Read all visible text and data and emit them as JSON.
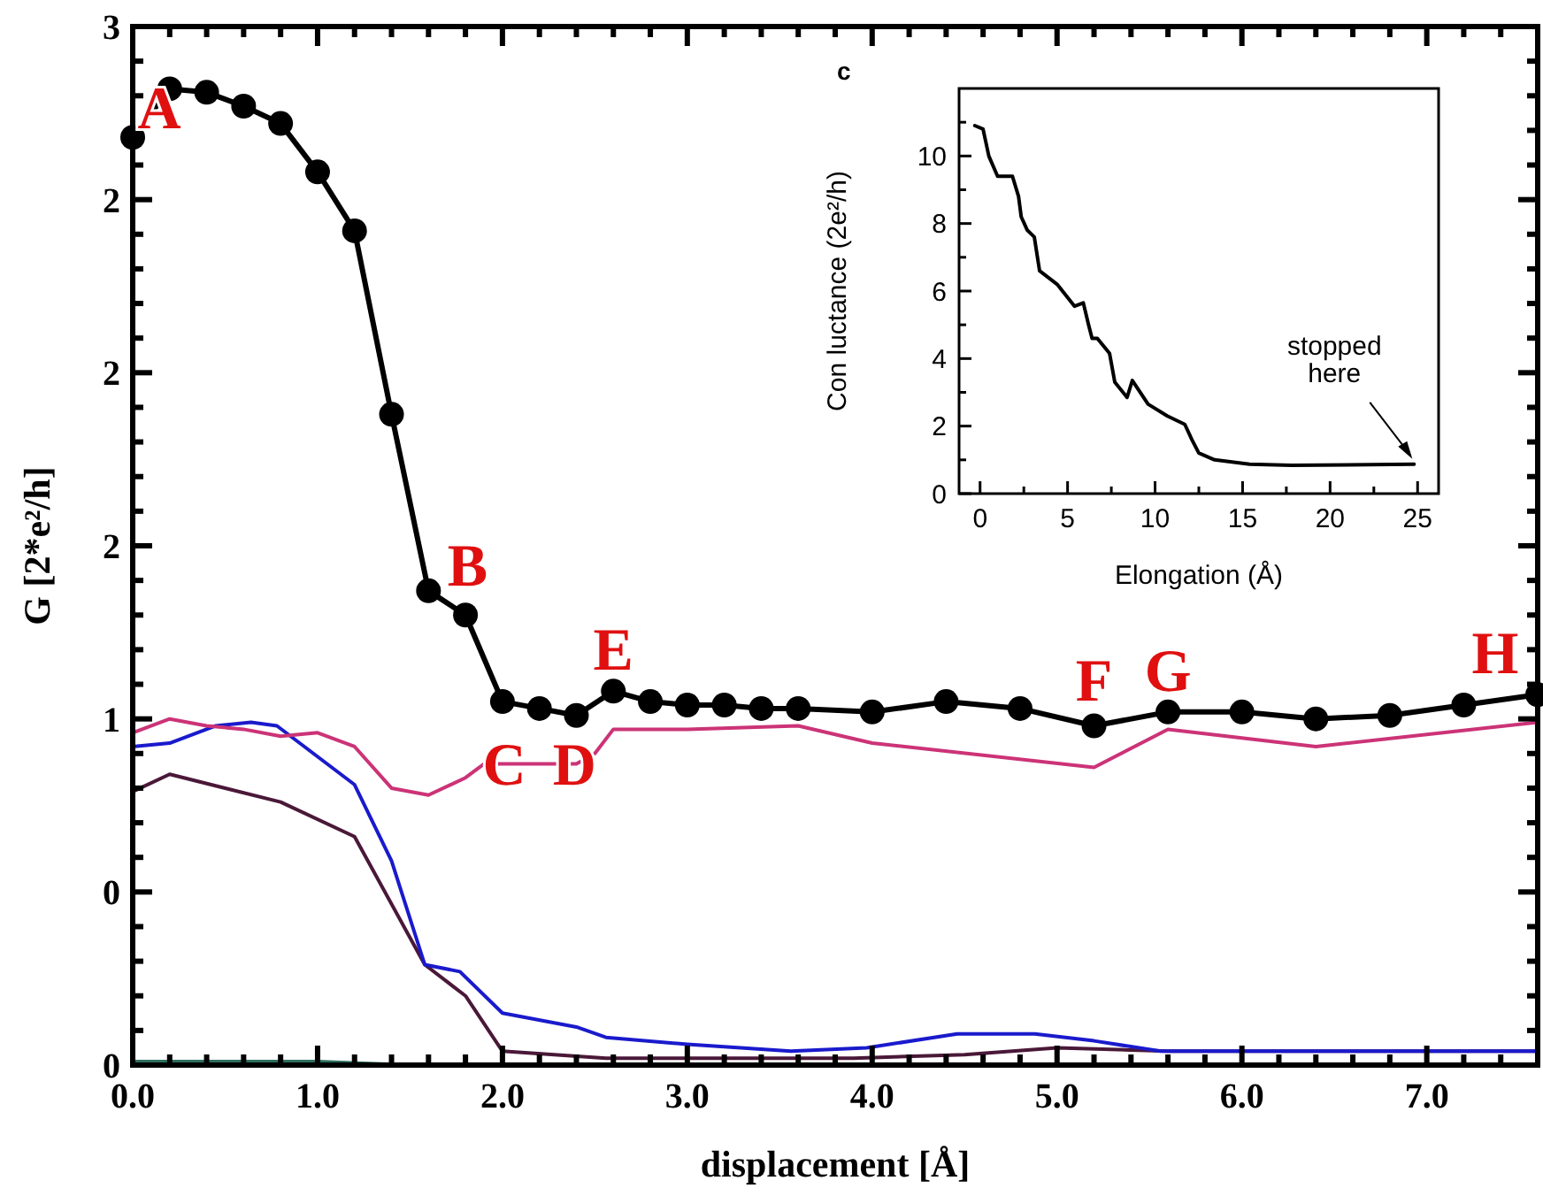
{
  "chart_data": [
    {
      "type": "line",
      "xlabel": "displacement [Å]",
      "ylabel": "G [2*e²/h]",
      "xlim": [
        0,
        7.6
      ],
      "ylim": [
        0,
        3
      ],
      "xticks": [
        {
          "value": 0,
          "label": "0.0"
        },
        {
          "value": 0.2,
          "label": null
        },
        {
          "value": 0.4,
          "label": null
        },
        {
          "value": 0.6,
          "label": null
        },
        {
          "value": 0.8,
          "label": null
        },
        {
          "value": 1,
          "label": "1.0"
        },
        {
          "value": 1.2,
          "label": null
        },
        {
          "value": 1.4,
          "label": null
        },
        {
          "value": 1.6,
          "label": null
        },
        {
          "value": 1.8,
          "label": null
        },
        {
          "value": 2,
          "label": "2.0"
        },
        {
          "value": 2.2,
          "label": null
        },
        {
          "value": 2.4,
          "label": null
        },
        {
          "value": 2.6,
          "label": null
        },
        {
          "value": 2.8,
          "label": null
        },
        {
          "value": 3,
          "label": "3.0"
        },
        {
          "value": 3.2,
          "label": null
        },
        {
          "value": 3.4,
          "label": null
        },
        {
          "value": 3.6,
          "label": null
        },
        {
          "value": 3.8,
          "label": null
        },
        {
          "value": 4,
          "label": "4.0"
        },
        {
          "value": 4.2,
          "label": null
        },
        {
          "value": 4.4,
          "label": null
        },
        {
          "value": 4.6,
          "label": null
        },
        {
          "value": 4.8,
          "label": null
        },
        {
          "value": 5,
          "label": "5.0"
        },
        {
          "value": 5.2,
          "label": null
        },
        {
          "value": 5.4,
          "label": null
        },
        {
          "value": 5.6,
          "label": null
        },
        {
          "value": 5.8,
          "label": null
        },
        {
          "value": 6,
          "label": "6.0"
        },
        {
          "value": 6.2,
          "label": null
        },
        {
          "value": 6.4,
          "label": null
        },
        {
          "value": 6.6,
          "label": null
        },
        {
          "value": 6.8,
          "label": null
        },
        {
          "value": 7,
          "label": "7.0"
        },
        {
          "value": 7.2,
          "label": null
        },
        {
          "value": 7.4,
          "label": null
        }
      ],
      "yticks": [
        0,
        {
          "value": 0.1,
          "label": null
        },
        {
          "value": 0.2,
          "label": null
        },
        {
          "value": 0.3,
          "label": null
        },
        {
          "value": 0.4,
          "label": null
        },
        {
          "value": 0.5,
          "label": "0"
        },
        {
          "value": 0.6,
          "label": null
        },
        {
          "value": 0.7,
          "label": null
        },
        {
          "value": 0.8,
          "label": null
        },
        {
          "value": 0.9,
          "label": null
        },
        1,
        {
          "value": 1.1,
          "label": null
        },
        {
          "value": 1.2,
          "label": null
        },
        {
          "value": 1.3,
          "label": null
        },
        {
          "value": 1.4,
          "label": null
        },
        {
          "value": 1.5,
          "label": "2"
        },
        {
          "value": 1.6,
          "label": null
        },
        {
          "value": 1.7,
          "label": null
        },
        {
          "value": 1.8,
          "label": null
        },
        {
          "value": 1.9,
          "label": null
        },
        2,
        {
          "value": 2.1,
          "label": null
        },
        {
          "value": 2.2,
          "label": null
        },
        {
          "value": 2.3,
          "label": null
        },
        {
          "value": 2.4,
          "label": null
        },
        {
          "value": 2.5,
          "label": "2"
        },
        {
          "value": 2.6,
          "label": null
        },
        {
          "value": 2.7,
          "label": null
        },
        {
          "value": 2.8,
          "label": null
        },
        {
          "value": 2.9,
          "label": null
        },
        3
      ],
      "grid": false,
      "series": [
        {
          "color": "#000000",
          "marker": "circle",
          "x": [
            0,
            0.2,
            0.4,
            0.6,
            0.8,
            1.0,
            1.2,
            1.4,
            1.6,
            1.8,
            2.0,
            2.2,
            2.4,
            2.6,
            2.8,
            3.0,
            3.2,
            3.4,
            3.6,
            4.0,
            4.4,
            4.8,
            5.2,
            5.6,
            6.0,
            6.4,
            6.8,
            7.2,
            7.6
          ],
          "values": [
            2.68,
            2.82,
            2.81,
            2.77,
            2.72,
            2.58,
            2.41,
            1.88,
            1.37,
            1.3,
            1.05,
            1.03,
            1.01,
            1.08,
            1.05,
            1.04,
            1.04,
            1.03,
            1.03,
            1.02,
            1.05,
            1.03,
            0.98,
            1.02,
            1.02,
            1.0,
            1.01,
            1.04,
            1.07
          ]
        },
        {
          "color": "#cc3377",
          "marker": "none",
          "x": [
            0,
            0.2,
            0.4,
            0.6,
            0.8,
            1.0,
            1.2,
            1.4,
            1.6,
            1.8,
            1.9,
            2.4,
            2.5,
            2.6,
            3.0,
            3.6,
            4.0,
            5.2,
            5.6,
            6.4,
            7.6
          ],
          "values": [
            0.96,
            1.0,
            0.98,
            0.97,
            0.95,
            0.96,
            0.92,
            0.8,
            0.78,
            0.83,
            0.87,
            0.87,
            0.9,
            0.97,
            0.97,
            0.98,
            0.93,
            0.86,
            0.97,
            0.92,
            0.99
          ]
        },
        {
          "color": "#1a1acc",
          "marker": "none",
          "x": [
            0,
            0.2,
            0.45,
            0.64,
            0.78,
            1.2,
            1.4,
            1.58,
            1.77,
            2.0,
            2.4,
            2.56,
            3.0,
            3.56,
            3.97,
            4.46,
            4.88,
            5.2,
            5.56,
            7.6
          ],
          "values": [
            0.92,
            0.93,
            0.98,
            0.99,
            0.98,
            0.81,
            0.59,
            0.29,
            0.27,
            0.15,
            0.11,
            0.08,
            0.06,
            0.04,
            0.05,
            0.09,
            0.09,
            0.07,
            0.04,
            0.04
          ]
        },
        {
          "color": "#4a1838",
          "marker": "none",
          "x": [
            0,
            0.2,
            0.8,
            1.2,
            1.58,
            1.8,
            2.0,
            2.56,
            3.9,
            4.5,
            5.0,
            5.6,
            7.6
          ],
          "values": [
            0.79,
            0.84,
            0.76,
            0.66,
            0.29,
            0.2,
            0.04,
            0.02,
            0.02,
            0.03,
            0.05,
            0.04,
            0.04
          ]
        },
        {
          "color": "#2f6f5f",
          "marker": "none",
          "x": [
            0,
            0.5,
            1.0,
            1.5
          ],
          "values": [
            0.01,
            0.01,
            0.01,
            0.0
          ]
        }
      ],
      "annotations": [
        {
          "text": "A",
          "x": 0,
          "y": 2.68
        },
        {
          "text": "B",
          "x": 1.6,
          "y": 1.37
        },
        {
          "text": "C",
          "x": 2.01,
          "y": 0.87
        },
        {
          "text": "D",
          "x": 2.39,
          "y": 0.87
        },
        {
          "text": "E",
          "x": 2.6,
          "y": 1.08
        },
        {
          "text": "F",
          "x": 5.2,
          "y": 0.98
        },
        {
          "text": "G",
          "x": 5.6,
          "y": 1.02
        },
        {
          "text": "H",
          "x": 7.6,
          "y": 1.07
        }
      ]
    },
    {
      "type": "line",
      "xlabel": "Elongation (Å)",
      "ylabel": "Con luctance (2e²/h)",
      "xlim": [
        -1.2,
        26.2
      ],
      "ylim": [
        0,
        12
      ],
      "xticks": [
        0,
        {
          "value": 2.5,
          "label": null
        },
        5,
        {
          "value": 7.5,
          "label": null
        },
        10,
        {
          "value": 12.5,
          "label": null
        },
        15,
        {
          "value": 17.5,
          "label": null
        },
        20,
        {
          "value": 22.5,
          "label": null
        },
        25
      ],
      "yticks": [
        0,
        {
          "value": 1,
          "label": null
        },
        2,
        {
          "value": 3,
          "label": null
        },
        4,
        {
          "value": 5,
          "label": null
        },
        6,
        {
          "value": 7,
          "label": null
        },
        8,
        {
          "value": 9,
          "label": null
        },
        10,
        {
          "value": 11,
          "label": null
        }
      ],
      "grid": false,
      "series": [
        {
          "color": "#000000",
          "marker": "none",
          "x": [
            -0.3,
            0.17,
            0.5,
            1.0,
            1.85,
            2.2,
            2.35,
            2.7,
            3.1,
            3.4,
            4.4,
            5.4,
            5.9,
            6.2,
            6.4,
            6.7,
            7.4,
            7.7,
            8.4,
            8.7,
            9.6,
            10.7,
            11.7,
            12.1,
            12.5,
            13.4,
            15.4,
            17.8,
            24.8
          ],
          "values": [
            10.9,
            10.8,
            10.0,
            9.4,
            9.4,
            8.8,
            8.2,
            7.8,
            7.6,
            6.6,
            6.2,
            5.55,
            5.65,
            5.0,
            4.6,
            4.6,
            4.15,
            3.3,
            2.85,
            3.35,
            2.65,
            2.3,
            2.05,
            1.6,
            1.2,
            1.0,
            0.87,
            0.84,
            0.87
          ]
        }
      ],
      "annotations": [
        "c",
        {
          "text": "stopped here",
          "x": 24.8,
          "y": 0.87
        }
      ]
    }
  ]
}
